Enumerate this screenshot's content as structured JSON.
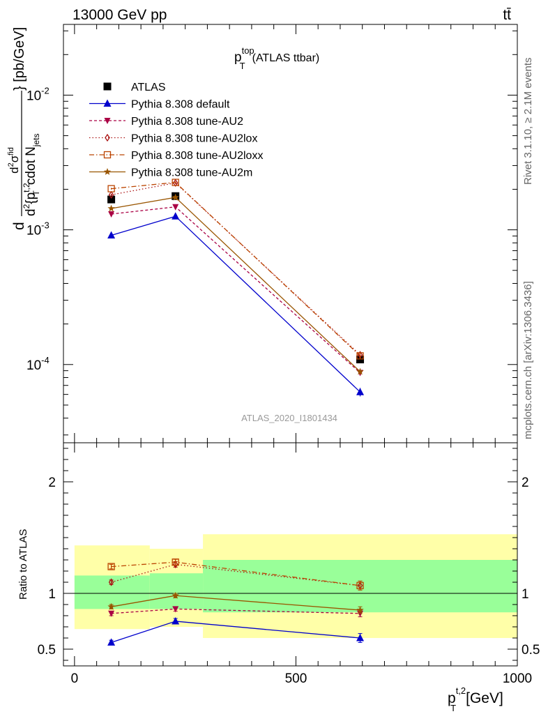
{
  "header": {
    "left": "13000 GeV pp",
    "right": "tt̄"
  },
  "side_labels": {
    "rivet": "Rivet 3.1.10, ≥ 2.1M events",
    "mcplots": "mcplots.cern.ch [arXiv:1306.3436]"
  },
  "chart_data": [
    {
      "type": "scatter",
      "panel": "main",
      "title": "p_T^top (ATLAS ttbar)",
      "title_parts": {
        "base": "p",
        "sup": "top",
        "sub": "T",
        "suffix": "(ATLAS ttbar)"
      },
      "ylabel_parts": {
        "d": "d",
        "num_d2": "d",
        "num_sup": "2",
        "sigma": "σ",
        "sigma_sup": "fid",
        "den_d2": "d",
        "den_sup": "2",
        "brace": "{p",
        "pt_sup": "t,2",
        "pt_sub": "T",
        "cdot": "cdot N",
        "njets_sub": "jets",
        "units": "} [pb/GeV]"
      },
      "yscale": "log",
      "ylim": [
        2.625e-05,
        0.0335
      ],
      "xlim": [
        -25,
        1000
      ],
      "y_ticks": [
        {
          "value": 0.01,
          "base": "10",
          "exp": "-2"
        },
        {
          "value": 0.001,
          "base": "10",
          "exp": "-3"
        },
        {
          "value": 0.0001,
          "base": "10",
          "exp": "-4"
        }
      ],
      "watermark": "ATLAS_2020_I1801434",
      "x": [
        83,
        228,
        645
      ],
      "series": [
        {
          "name": "ATLAS",
          "marker": "square",
          "color": "#000000",
          "values": [
            0.00168,
            0.00178,
            0.000109
          ],
          "errors": [
            5e-05,
            5e-05,
            4e-06
          ]
        },
        {
          "name": "Pythia 8.308 default",
          "marker": "triangle-up",
          "color": "#0000cc",
          "dash": "",
          "values": [
            0.00091,
            0.00126,
            6.25e-05
          ],
          "errors": [
            2e-05,
            3e-05,
            4.5e-06
          ]
        },
        {
          "name": "Pythia 8.308 tune-AU2",
          "marker": "triangle-down",
          "color": "#aa0044",
          "dash": "4,3",
          "values": [
            0.00131,
            0.00148,
            8.7e-05
          ],
          "errors": [
            3e-05,
            3e-05,
            4e-06
          ]
        },
        {
          "name": "Pythia 8.308 tune-AU2lox",
          "marker": "diamond",
          "color": "#aa1111",
          "dash": "1.5,3",
          "values": [
            0.00182,
            0.00223,
            0.000118
          ],
          "errors": [
            3e-05,
            4e-05,
            5e-06
          ]
        },
        {
          "name": "Pythia 8.308 tune-AU2loxx",
          "marker": "square-open",
          "color": "#bb4400",
          "dash": "7,3,1.5,3",
          "values": [
            0.00202,
            0.00225,
            0.000116
          ],
          "errors": [
            3e-05,
            4e-05,
            5e-06
          ]
        },
        {
          "name": "Pythia 8.308 tune-AU2m",
          "marker": "star",
          "color": "#995500",
          "dash": "",
          "values": [
            0.00144,
            0.00174,
            8.85e-05
          ],
          "errors": [
            3e-05,
            3e-05,
            4e-06
          ]
        }
      ]
    },
    {
      "type": "scatter",
      "panel": "ratio",
      "ylabel": "Ratio to ATLAS",
      "ylim": [
        0.35,
        2.35
      ],
      "y_ticks": [
        "2",
        "1",
        "0.5"
      ],
      "y_tick_values": [
        2,
        1,
        0.5
      ],
      "xlim": [
        -25,
        1000
      ],
      "xlabel_parts": {
        "base": "p",
        "sup": "t,2",
        "sub": "T",
        "units": "[GeV]"
      },
      "x_ticks": [
        "0",
        "500",
        "1000"
      ],
      "x_tick_values": [
        0,
        500,
        1000
      ],
      "reference_line": 1,
      "bands": [
        {
          "x0": 0,
          "x1": 170,
          "inner": [
            0.86,
            1.16
          ],
          "outer": [
            0.68,
            1.43
          ]
        },
        {
          "x0": 170,
          "x1": 290,
          "inner": [
            0.86,
            1.18
          ],
          "outer": [
            0.7,
            1.4
          ]
        },
        {
          "x0": 290,
          "x1": 1000,
          "inner": [
            0.83,
            1.3
          ],
          "outer": [
            0.6,
            1.53
          ]
        }
      ],
      "x": [
        83,
        228,
        645
      ],
      "series": [
        {
          "name": "Pythia 8.308 default",
          "values": [
            0.56,
            0.75,
            0.6
          ],
          "errors": [
            0.02,
            0.025,
            0.04
          ]
        },
        {
          "name": "Pythia 8.308 tune-AU2",
          "values": [
            0.82,
            0.86,
            0.82
          ],
          "errors": [
            0.02,
            0.02,
            0.03
          ]
        },
        {
          "name": "Pythia 8.308 tune-AU2lox",
          "values": [
            1.1,
            1.26,
            1.07
          ],
          "errors": [
            0.02,
            0.025,
            0.04
          ]
        },
        {
          "name": "Pythia 8.308 tune-AU2loxx",
          "values": [
            1.24,
            1.28,
            1.07
          ],
          "errors": [
            0.02,
            0.025,
            0.04
          ]
        },
        {
          "name": "Pythia 8.308 tune-AU2m",
          "values": [
            0.88,
            0.98,
            0.85
          ],
          "errors": [
            0.02,
            0.02,
            0.03
          ]
        }
      ]
    }
  ]
}
